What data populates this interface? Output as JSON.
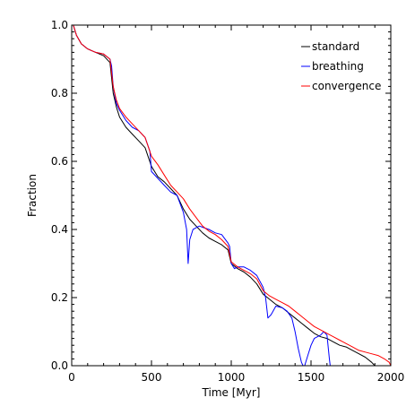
{
  "chart_data": {
    "type": "line",
    "title": "",
    "xlabel": "Time [Myr]",
    "ylabel": "Fraction",
    "xlim": [
      0,
      2000
    ],
    "ylim": [
      0,
      1.0
    ],
    "x_ticks": [
      0,
      500,
      1000,
      1500,
      2000
    ],
    "x_tick_labels": [
      "0",
      "500",
      "1000",
      "1500",
      "2000"
    ],
    "y_ticks": [
      0.0,
      0.2,
      0.4,
      0.6,
      0.8,
      1.0
    ],
    "y_tick_labels": [
      "0.0",
      "0.2",
      "0.4",
      "0.6",
      "0.8",
      "1.0"
    ],
    "grid": false,
    "legend_position": "top-right",
    "series": [
      {
        "name": "standard",
        "color": "#000000",
        "x": [
          10,
          30,
          60,
          100,
          150,
          200,
          240,
          260,
          280,
          300,
          340,
          380,
          420,
          460,
          500,
          540,
          580,
          620,
          660,
          700,
          740,
          780,
          820,
          860,
          900,
          940,
          980,
          1000,
          1040,
          1080,
          1120,
          1160,
          1200,
          1240,
          1280,
          1320,
          1360,
          1400,
          1440,
          1480,
          1520,
          1560,
          1600,
          1640,
          1680,
          1720,
          1760,
          1800,
          1840,
          1880,
          1900,
          1910
        ],
        "y": [
          1.0,
          0.97,
          0.945,
          0.93,
          0.92,
          0.91,
          0.89,
          0.8,
          0.76,
          0.73,
          0.7,
          0.68,
          0.66,
          0.64,
          0.585,
          0.555,
          0.54,
          0.52,
          0.5,
          0.46,
          0.43,
          0.41,
          0.39,
          0.375,
          0.365,
          0.355,
          0.34,
          0.3,
          0.285,
          0.275,
          0.26,
          0.24,
          0.21,
          0.195,
          0.18,
          0.17,
          0.155,
          0.14,
          0.125,
          0.11,
          0.095,
          0.085,
          0.08,
          0.07,
          0.06,
          0.055,
          0.045,
          0.035,
          0.025,
          0.01,
          0.0,
          0.0
        ]
      },
      {
        "name": "breathing",
        "color": "#0000ff",
        "x": [
          10,
          30,
          60,
          100,
          150,
          200,
          240,
          250,
          260,
          280,
          300,
          340,
          380,
          420,
          460,
          490,
          500,
          540,
          580,
          620,
          660,
          700,
          720,
          730,
          740,
          760,
          780,
          800,
          830,
          860,
          900,
          940,
          980,
          990,
          1000,
          1020,
          1040,
          1080,
          1120,
          1160,
          1200,
          1215,
          1230,
          1250,
          1280,
          1320,
          1350,
          1380,
          1400,
          1420,
          1440,
          1450,
          1460,
          1480,
          1500,
          1520,
          1540,
          1560,
          1580,
          1600,
          1615,
          1620
        ],
        "y": [
          1.0,
          0.97,
          0.945,
          0.93,
          0.92,
          0.915,
          0.9,
          0.88,
          0.82,
          0.77,
          0.75,
          0.72,
          0.7,
          0.69,
          0.67,
          0.63,
          0.57,
          0.55,
          0.53,
          0.51,
          0.5,
          0.45,
          0.4,
          0.3,
          0.37,
          0.4,
          0.405,
          0.41,
          0.405,
          0.4,
          0.39,
          0.385,
          0.36,
          0.35,
          0.3,
          0.285,
          0.29,
          0.29,
          0.28,
          0.265,
          0.23,
          0.2,
          0.14,
          0.15,
          0.175,
          0.17,
          0.16,
          0.14,
          0.1,
          0.05,
          0.01,
          0.0,
          0.0,
          0.03,
          0.06,
          0.08,
          0.085,
          0.09,
          0.1,
          0.09,
          0.02,
          0.0
        ]
      },
      {
        "name": "convergence",
        "color": "#ff0000",
        "x": [
          10,
          30,
          60,
          100,
          150,
          200,
          240,
          260,
          280,
          300,
          340,
          380,
          420,
          460,
          500,
          540,
          580,
          620,
          660,
          700,
          740,
          780,
          820,
          860,
          900,
          940,
          980,
          1000,
          1040,
          1080,
          1120,
          1160,
          1200,
          1240,
          1280,
          1320,
          1360,
          1400,
          1440,
          1480,
          1520,
          1560,
          1600,
          1640,
          1680,
          1720,
          1760,
          1800,
          1840,
          1880,
          1920,
          1960,
          1990,
          2000
        ],
        "y": [
          1.0,
          0.97,
          0.945,
          0.93,
          0.92,
          0.915,
          0.9,
          0.82,
          0.78,
          0.755,
          0.73,
          0.71,
          0.69,
          0.67,
          0.615,
          0.59,
          0.56,
          0.53,
          0.51,
          0.49,
          0.46,
          0.435,
          0.41,
          0.395,
          0.385,
          0.37,
          0.35,
          0.305,
          0.29,
          0.28,
          0.27,
          0.255,
          0.22,
          0.205,
          0.195,
          0.185,
          0.175,
          0.16,
          0.145,
          0.13,
          0.115,
          0.105,
          0.095,
          0.085,
          0.075,
          0.065,
          0.055,
          0.045,
          0.04,
          0.035,
          0.03,
          0.02,
          0.01,
          0.0
        ]
      }
    ]
  }
}
